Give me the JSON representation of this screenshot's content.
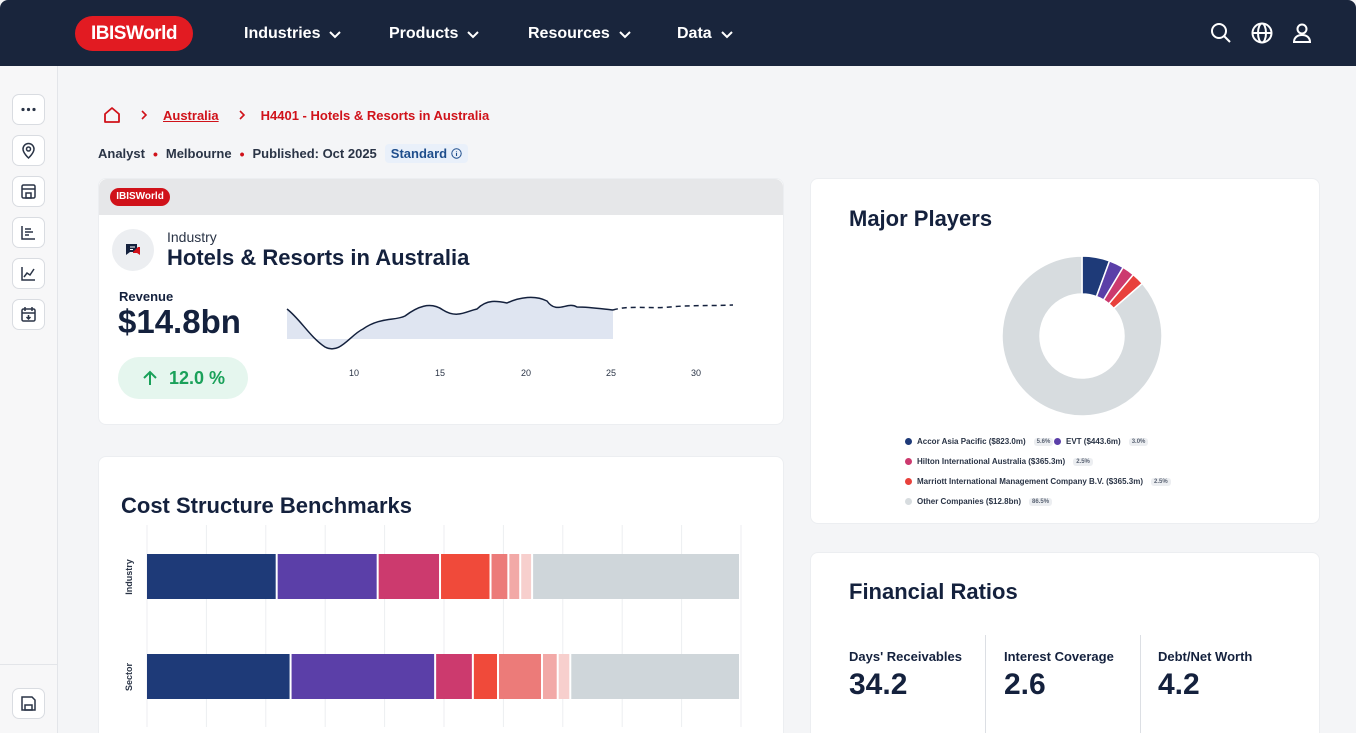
{
  "nav": {
    "logo": "IBISWorld",
    "items": [
      {
        "label": "Industries"
      },
      {
        "label": "Products"
      },
      {
        "label": "Resources"
      },
      {
        "label": "Data"
      }
    ]
  },
  "breadcrumb": {
    "country": "Australia",
    "current": "H4401 - Hotels & Resorts in Australia"
  },
  "meta": {
    "role": "Analyst",
    "location": "Melbourne",
    "published": "Published: Oct 2025",
    "tier": "Standard"
  },
  "industry_card": {
    "logo": "IBISWorld",
    "type_label": "Industry",
    "title": "Hotels & Resorts in Australia",
    "revenue_label": "Revenue",
    "revenue_value": "$14.8bn",
    "growth": "12.0 %",
    "x_ticks": [
      "10",
      "15",
      "20",
      "25",
      "30"
    ]
  },
  "major_players": {
    "title": "Major Players",
    "legend": [
      {
        "label": "Accor Asia Pacific ($823.0m)",
        "pct": "5.6%",
        "color": "#1e3a78"
      },
      {
        "label": "EVT ($443.6m)",
        "pct": "3.0%",
        "color": "#5b3fa8"
      },
      {
        "label": "Hilton International Australia ($365.3m)",
        "pct": "2.5%",
        "color": "#cc3a6e"
      },
      {
        "label": "Marriott International Management Company B.V. ($365.3m)",
        "pct": "2.5%",
        "color": "#e8413c"
      },
      {
        "label": "Other Companies ($12.8bn)",
        "pct": "86.5%",
        "color": "#d7dcdf"
      }
    ]
  },
  "cost_structure": {
    "title": "Cost Structure Benchmarks",
    "rows": [
      "Industry",
      "Sector"
    ]
  },
  "financial_ratios": {
    "title": "Financial Ratios",
    "items": [
      {
        "label": "Days' Receivables",
        "value": "34.2"
      },
      {
        "label": "Interest Coverage",
        "value": "2.6"
      },
      {
        "label": "Debt/Net Worth",
        "value": "4.2"
      }
    ]
  },
  "chart_data": [
    {
      "type": "pie",
      "title": "Major Players",
      "categories": [
        "Accor Asia Pacific ($823.0m)",
        "EVT ($443.6m)",
        "Hilton International Australia ($365.3m)",
        "Marriott International Management Company B.V. ($365.3m)",
        "Other Companies ($12.8bn)"
      ],
      "values": [
        5.6,
        3.0,
        2.5,
        2.5,
        86.5
      ],
      "colors": [
        "#1e3a78",
        "#5b3fa8",
        "#cc3a6e",
        "#e8413c",
        "#d7dcdf"
      ],
      "donut": true
    },
    {
      "type": "bar",
      "title": "Cost Structure Benchmarks",
      "stacked": true,
      "orientation": "horizontal",
      "categories": [
        "Industry",
        "Sector"
      ],
      "series": [
        {
          "values": [
            22,
            23
          ],
          "color": "#1e3a78"
        },
        {
          "values": [
            17,
            23
          ],
          "color": "#5b3fa8"
        },
        {
          "values": [
            10.5,
            6
          ],
          "color": "#cc3a6e"
        },
        {
          "values": [
            8.5,
            4
          ],
          "color": "#f04a3a"
        },
        {
          "values": [
            3,
            7
          ],
          "color": "#ec7b79"
        },
        {
          "values": [
            2,
            2.5
          ],
          "color": "#f2a9a7"
        },
        {
          "values": [
            2,
            2
          ],
          "color": "#f7cfcd"
        },
        {
          "values": [
            35,
            27
          ],
          "color": "#cfd6da"
        }
      ]
    }
  ]
}
